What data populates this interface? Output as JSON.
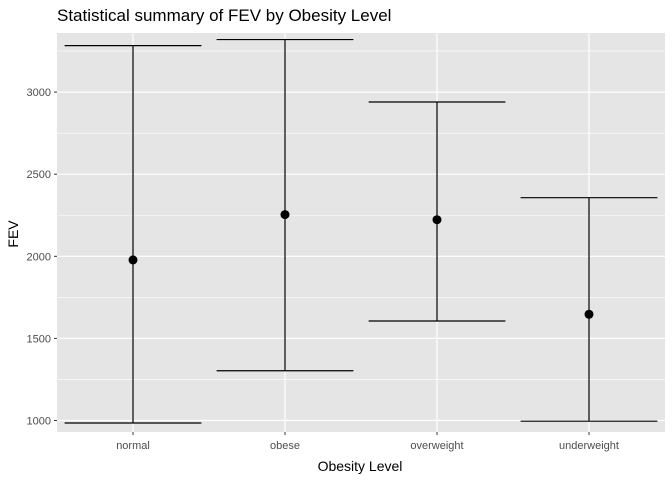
{
  "chart_data": {
    "type": "errorbar",
    "title": "Statistical summary of FEV by Obesity Level",
    "xlabel": "Obesity Level",
    "ylabel": "FEV",
    "categories": [
      "normal",
      "obese",
      "overweight",
      "underweight"
    ],
    "series": [
      {
        "mean": [
          1978,
          2254,
          2223,
          1647
        ],
        "lower": [
          985,
          1303,
          1606,
          996
        ],
        "upper": [
          3283,
          3320,
          2940,
          2357
        ]
      }
    ],
    "ylim": [
      930,
      3360
    ],
    "yticks": [
      1000,
      1500,
      2000,
      2500,
      3000
    ],
    "grid": true,
    "legend": "none",
    "colors": {
      "panel": "#e5e5e5",
      "grid_major": "#ffffff",
      "marks": "#000000",
      "tick_text": "#4d4d4d"
    }
  }
}
